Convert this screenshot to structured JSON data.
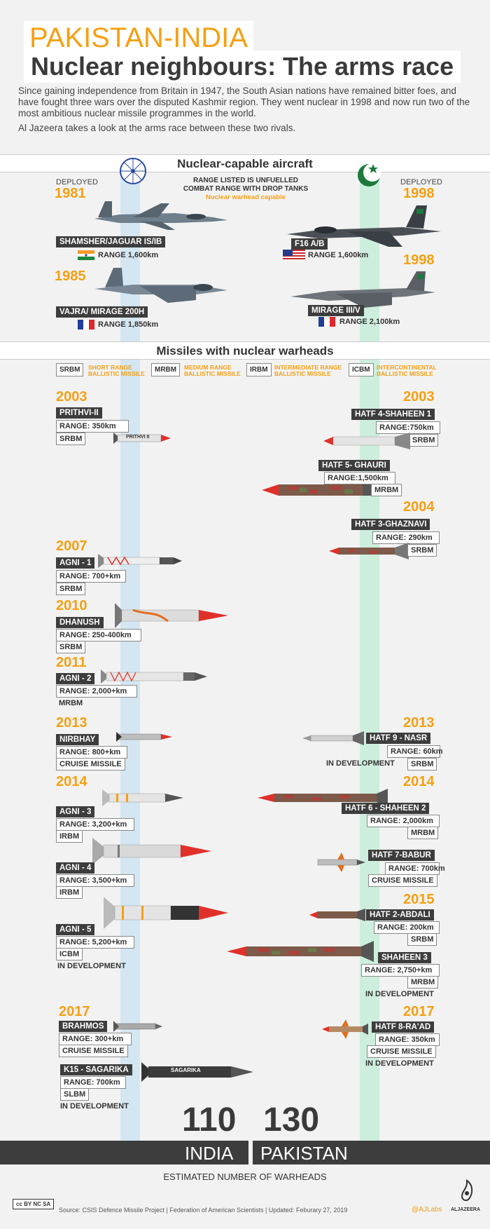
{
  "header": {
    "kicker": "PAKISTAN-INDIA",
    "title": "Nuclear neighbours: The arms race",
    "intro_1": "Since gaining independence from Britain in 1947, the South Asian nations have remained bitter foes, and have fought three wars over the disputed Kashmir region. They went nuclear in 1998 and now run two of the most ambitious nuclear missile programmes in the world.",
    "intro_2": "Al Jazeera takes a look at the arms race between these two rivals."
  },
  "aircraft": {
    "section_title": "Nuclear-capable aircraft",
    "note_line1": "RANGE LISTED IS UNFUELLED",
    "note_line2": "COMBAT RANGE WITH DROP TANKS",
    "note_line3": "Nuclear warhead capable",
    "deployed_label": "DEPLOYED",
    "india": [
      {
        "year": "1981",
        "name": "SHAMSHER/JAGUAR IS/IB",
        "range": "RANGE 1,600km",
        "flag": "india"
      },
      {
        "year": "1985",
        "name": "VAJRA/ MIRAGE 200H",
        "range": "RANGE 1,850km",
        "flag": "france"
      }
    ],
    "pakistan": [
      {
        "year": "1998",
        "name": "F16 A/B",
        "range": "RANGE 1,600km",
        "flag": "usa"
      },
      {
        "year": "1998",
        "name": "MIRAGE III/V",
        "range": "RANGE 2,100km",
        "flag": "france"
      }
    ]
  },
  "missiles": {
    "section_title": "Missiles with nuclear warheads",
    "legend": [
      {
        "code": "SRBM",
        "line1": "SHORT RANGE",
        "line2": "BALLISTIC MISSILE"
      },
      {
        "code": "MRBM",
        "line1": "MEDIUM RANGE",
        "line2": "BALLISTIC MISSILE"
      },
      {
        "code": "IRBM",
        "line1": "INTERMEDIATE RANGE",
        "line2": "BALLISTIC MISSILE"
      },
      {
        "code": "ICBM",
        "line1": "INTERCONTINENTAL",
        "line2": "BALLISTIC MISSILE"
      }
    ],
    "india": [
      {
        "year": "2003",
        "name": "PRITHVI-II",
        "range": "RANGE: 350km",
        "type": "SRBM",
        "label": "PRITHVI II"
      },
      {
        "year": "2007",
        "name": "AGNI - 1",
        "range": "RANGE: 700+km",
        "type": "SRBM"
      },
      {
        "year": "2010",
        "name": "DHANUSH",
        "range": "RANGE: 250-400km",
        "type": "SRBM"
      },
      {
        "year": "2011",
        "name": "AGNI - 2",
        "range": "RANGE: 2,000+km",
        "type": "MRBM"
      },
      {
        "year": "2013",
        "name": "NIRBHAY",
        "range": "RANGE: 800+km",
        "type": "CRUISE MISSILE"
      },
      {
        "year": "2014",
        "name": "AGNI - 3",
        "range": "RANGE: 3,200+km",
        "type": "IRBM"
      },
      {
        "name": "AGNI - 4",
        "range": "RANGE: 3,500+km",
        "type": "IRBM"
      },
      {
        "name": "AGNI - 5",
        "range": "RANGE: 5,200+km",
        "type": "ICBM",
        "status": "IN DEVELOPMENT"
      },
      {
        "year": "2017",
        "name": "BRAHMOS",
        "range": "RANGE: 300+km",
        "type": "CRUISE MISSILE"
      },
      {
        "name": "K15 - SAGARIKA",
        "range": "RANGE: 700km",
        "type": "SLBM",
        "status": "IN DEVELOPMENT",
        "label": "SAGARIKA"
      }
    ],
    "pakistan": [
      {
        "year": "2003",
        "name": "HATF 4-SHAHEEN 1",
        "range": "RANGE:750km",
        "type": "SRBM"
      },
      {
        "name": "HATF 5- GHAURI",
        "range": "RANGE:1,500km",
        "type": "MRBM"
      },
      {
        "year": "2004",
        "name": "HATF 3-GHAZNAVI",
        "range": "RANGE: 290km",
        "type": "SRBM"
      },
      {
        "year": "2013",
        "name": "HATF 9 - NASR",
        "range": "RANGE: 60km",
        "type": "SRBM",
        "status": "IN DEVELOPMENT"
      },
      {
        "year": "2014",
        "name": "HATF 6 - SHAHEEN 2",
        "range": "RANGE: 2,000km",
        "type": "MRBM"
      },
      {
        "name": "HATF 7-BABUR",
        "range": "RANGE: 700km",
        "type": "CRUISE MISSILE"
      },
      {
        "year": "2015",
        "name": "HATF 2-ABDALI",
        "range": "RANGE: 200km",
        "type": "SRBM"
      },
      {
        "name": "SHAHEEN 3",
        "range": "RANGE: 2,750+km",
        "type": "MRBM",
        "status": "IN DEVELOPMENT"
      },
      {
        "year": "2017",
        "name": "HATF 8-RA'AD",
        "range": "RANGE: 350km",
        "type": "CRUISE MISSILE",
        "status": "IN DEVELOPMENT"
      }
    ]
  },
  "warheads": {
    "india_count": "110",
    "pakistan_count": "130",
    "india_label": "INDIA",
    "pakistan_label": "PAKISTAN",
    "caption": "ESTIMATED NUMBER OF WARHEADS"
  },
  "footer": {
    "license": "cc BY NC SA",
    "source": "Source: CSIS Defence Missile Project | Federation of American Scientists | Updated: Feburary 27, 2019",
    "handle": "@AJLabs",
    "brand": "ALJAZEERA"
  },
  "colors": {
    "accent": "#f5a012",
    "dark": "#3d3d3d",
    "india_column": "#d3e6f2",
    "pakistan_column": "#cdeedd",
    "missile_red": "#e0302a"
  }
}
